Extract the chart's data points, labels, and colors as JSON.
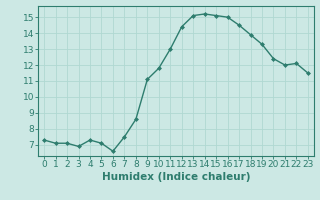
{
  "x": [
    0,
    1,
    2,
    3,
    4,
    5,
    6,
    7,
    8,
    9,
    10,
    11,
    12,
    13,
    14,
    15,
    16,
    17,
    18,
    19,
    20,
    21,
    22,
    23
  ],
  "y": [
    7.3,
    7.1,
    7.1,
    6.9,
    7.3,
    7.1,
    6.6,
    7.5,
    8.6,
    11.1,
    11.8,
    13.0,
    14.4,
    15.1,
    15.2,
    15.1,
    15.0,
    14.5,
    13.9,
    13.3,
    12.4,
    12.0,
    12.1,
    11.5
  ],
  "xlabel": "Humidex (Indice chaleur)",
  "ylim": [
    6.3,
    15.7
  ],
  "xlim": [
    -0.5,
    23.5
  ],
  "yticks": [
    7,
    8,
    9,
    10,
    11,
    12,
    13,
    14,
    15
  ],
  "xticks": [
    0,
    1,
    2,
    3,
    4,
    5,
    6,
    7,
    8,
    9,
    10,
    11,
    12,
    13,
    14,
    15,
    16,
    17,
    18,
    19,
    20,
    21,
    22,
    23
  ],
  "line_color": "#2e7d6e",
  "marker_color": "#2e7d6e",
  "bg_color": "#cce8e4",
  "grid_color": "#b0d8d2",
  "tick_label_fontsize": 6.5,
  "xlabel_fontsize": 7.5
}
